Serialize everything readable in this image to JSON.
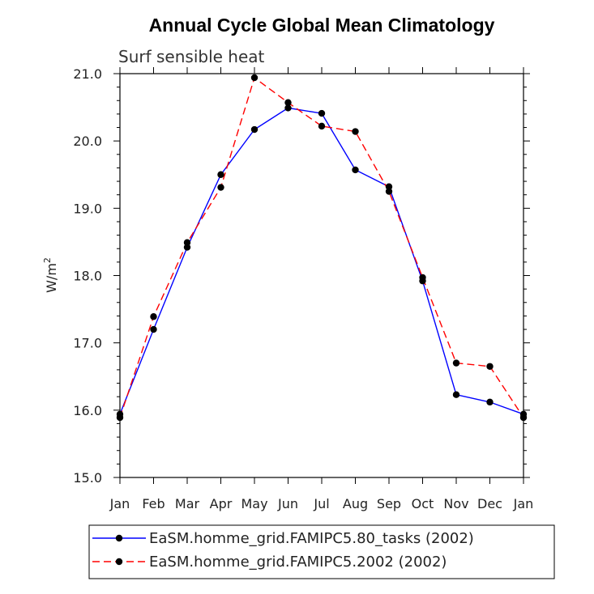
{
  "chart_data": {
    "type": "line",
    "title": "Annual Cycle Global Mean Climatology",
    "subtitle": "Surf sensible heat",
    "ylabel": "W/m",
    "ylabel_sup": "2",
    "xlabel": "",
    "categories": [
      "Jan",
      "Feb",
      "Mar",
      "Apr",
      "May",
      "Jun",
      "Jul",
      "Aug",
      "Sep",
      "Oct",
      "Nov",
      "Dec",
      "Jan"
    ],
    "ylim": [
      15.0,
      21.0
    ],
    "yticks": [
      "15.0",
      "16.0",
      "17.0",
      "18.0",
      "19.0",
      "20.0",
      "21.0"
    ],
    "series": [
      {
        "name": "EaSM.homme_grid.FAMIPC5.80_tasks (2002)",
        "color": "#0000ff",
        "dash": "solid",
        "values": [
          15.94,
          17.2,
          18.42,
          19.5,
          20.17,
          20.49,
          20.41,
          19.57,
          19.32,
          17.92,
          16.23,
          16.12,
          15.94
        ]
      },
      {
        "name": "EaSM.homme_grid.FAMIPC5.2002 (2002)",
        "color": "#ff0000",
        "dash": "dashed",
        "values": [
          15.89,
          17.39,
          18.49,
          19.31,
          20.94,
          20.57,
          20.22,
          20.14,
          19.25,
          17.97,
          16.7,
          16.65,
          15.89
        ]
      }
    ],
    "legend_position": "bottom"
  }
}
